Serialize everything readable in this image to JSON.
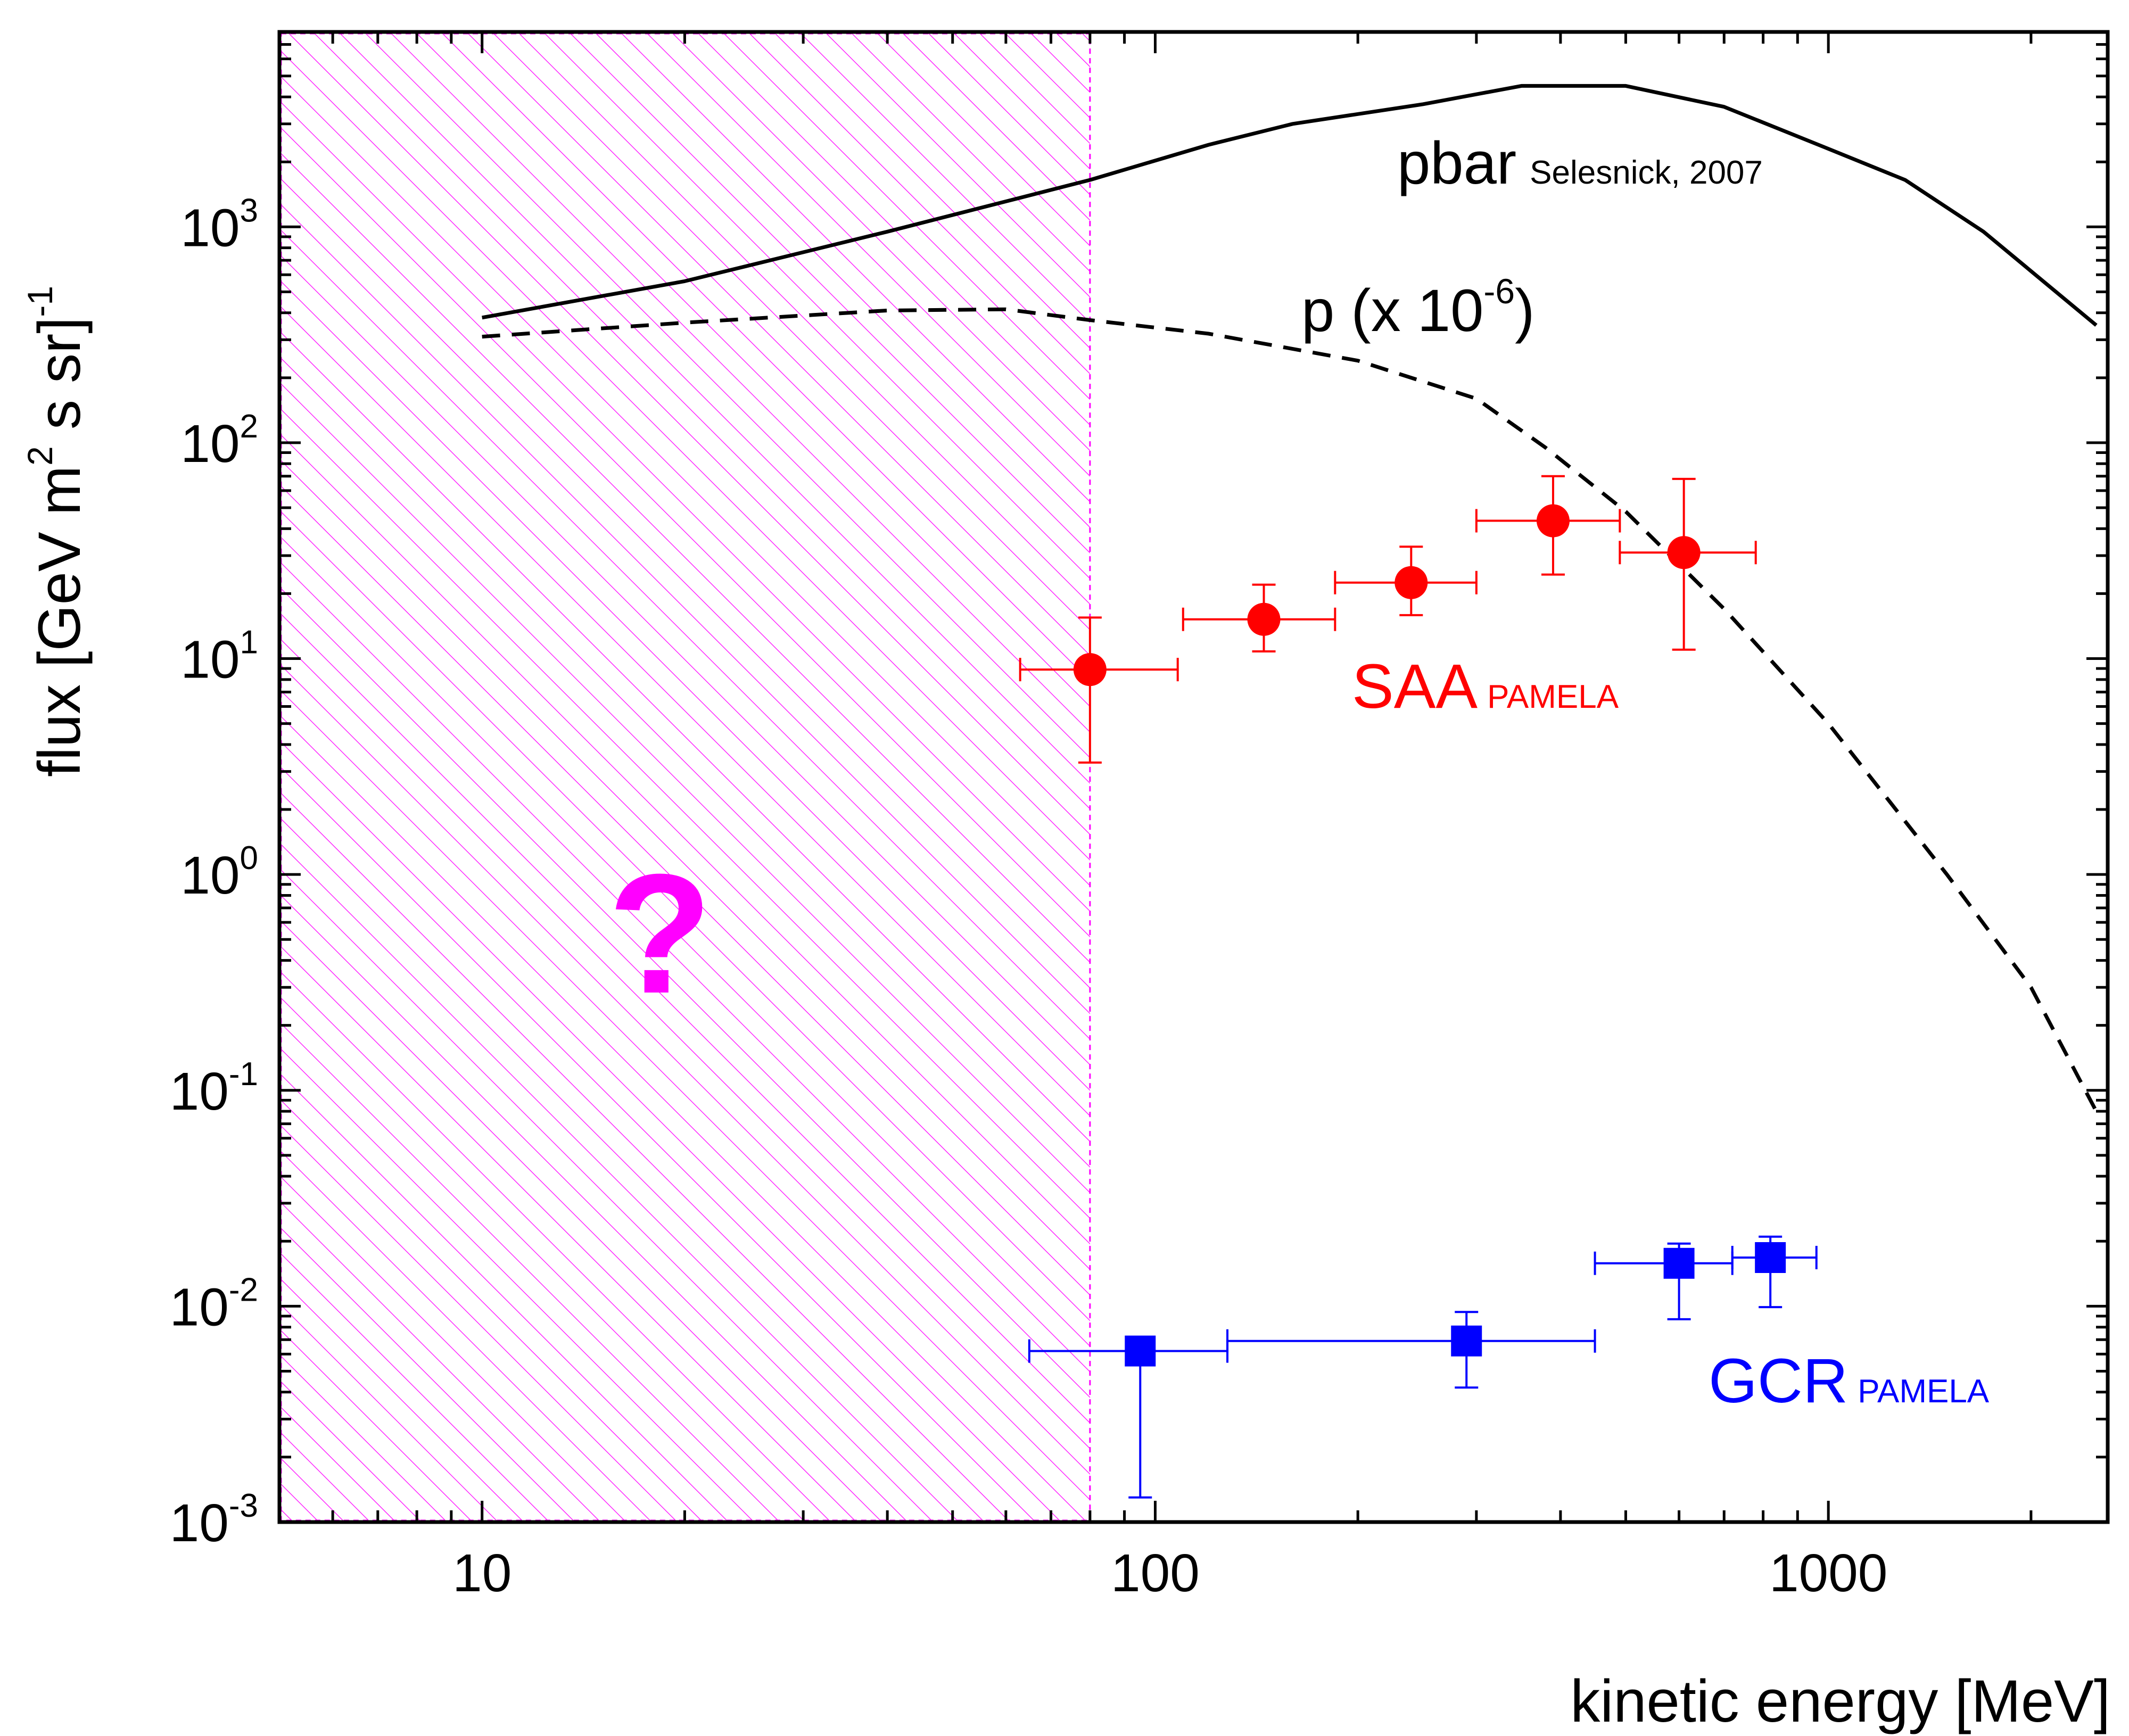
{
  "chart_data": {
    "type": "scatter",
    "x_scale": "log",
    "y_scale": "log",
    "xlim": [
      5,
      2600
    ],
    "ylim": [
      0.001,
      8000
    ],
    "xlabel": "kinetic energy [MeV]",
    "ylabel": {
      "main": "flux [GeV m",
      "sup1": "2",
      "mid": " s sr]",
      "sup2": "-1"
    },
    "x_ticks": [
      {
        "value": 10,
        "label": "10"
      },
      {
        "value": 100,
        "label": "100"
      },
      {
        "value": 1000,
        "label": "1000"
      }
    ],
    "y_ticks": [
      {
        "value": 0.001,
        "base": "10",
        "exp": "-3"
      },
      {
        "value": 0.01,
        "base": "10",
        "exp": "-2"
      },
      {
        "value": 0.1,
        "base": "10",
        "exp": "-1"
      },
      {
        "value": 1,
        "base": "10",
        "exp": "0"
      },
      {
        "value": 10,
        "base": "10",
        "exp": "1"
      },
      {
        "value": 100,
        "base": "10",
        "exp": "2"
      },
      {
        "value": 1000,
        "base": "10",
        "exp": "3"
      }
    ],
    "shaded_region": {
      "x": [
        5,
        80
      ],
      "color": "#ff00ff",
      "label": "?"
    },
    "series": [
      {
        "name": "pbar",
        "style": "solid",
        "color": "#000000",
        "x": [
          10,
          20,
          40,
          80,
          120,
          160,
          250,
          350,
          500,
          700,
          1000,
          1300,
          1700,
          2500
        ],
        "y": [
          380,
          560,
          950,
          1650,
          2400,
          3000,
          3700,
          4500,
          4500,
          3600,
          2300,
          1650,
          950,
          350
        ]
      },
      {
        "name": "p (x 10-6)",
        "style": "dashed",
        "color": "#000000",
        "x": [
          10,
          20,
          40,
          60,
          80,
          120,
          200,
          300,
          380,
          500,
          700,
          1000,
          1500,
          2000,
          2500
        ],
        "y": [
          310,
          360,
          410,
          415,
          370,
          320,
          240,
          160,
          95,
          48,
          17,
          5,
          1,
          0.3,
          0.08
        ]
      },
      {
        "name": "SAA PAMELA",
        "style": "markers",
        "marker": "circle",
        "color": "#ff0000",
        "points": [
          {
            "x": 80,
            "y": 8.9,
            "xerr": [
              63,
              108
            ],
            "yerr": [
              3.3,
              15.5
            ]
          },
          {
            "x": 145,
            "y": 15.2,
            "xerr": [
              110,
              185
            ],
            "yerr": [
              10.8,
              22
            ]
          },
          {
            "x": 240,
            "y": 22.5,
            "xerr": [
              185,
              300
            ],
            "yerr": [
              15.9,
              33
            ]
          },
          {
            "x": 390,
            "y": 43.5,
            "xerr": [
              300,
              490
            ],
            "yerr": [
              24.5,
              70
            ]
          },
          {
            "x": 610,
            "y": 31,
            "xerr": [
              490,
              780
            ],
            "yerr": [
              11,
              68
            ]
          }
        ]
      },
      {
        "name": "GCR PAMELA",
        "style": "markers",
        "marker": "square",
        "color": "#0000ff",
        "points": [
          {
            "x": 95,
            "y": 0.0062,
            "xerr": [
              65,
              128
            ],
            "yerr": [
              0.0013,
              0.0062
            ]
          },
          {
            "x": 290,
            "y": 0.0069,
            "xerr": [
              128,
              450
            ],
            "yerr": [
              0.0042,
              0.0094
            ]
          },
          {
            "x": 600,
            "y": 0.0158,
            "xerr": [
              450,
              720
            ],
            "yerr": [
              0.0087,
              0.0195
            ]
          },
          {
            "x": 820,
            "y": 0.0168,
            "xerr": [
              720,
              960
            ],
            "yerr": [
              0.0099,
              0.021
            ]
          }
        ]
      }
    ],
    "annotations": {
      "pbar_main": "pbar",
      "pbar_ref": "Selesnick, 2007",
      "p_main": "p (x 10",
      "p_exp": "-6",
      "p_close": ")",
      "saa_main": "SAA",
      "saa_sub": "PAMELA",
      "gcr_main": "GCR",
      "gcr_sub": "PAMELA"
    }
  }
}
